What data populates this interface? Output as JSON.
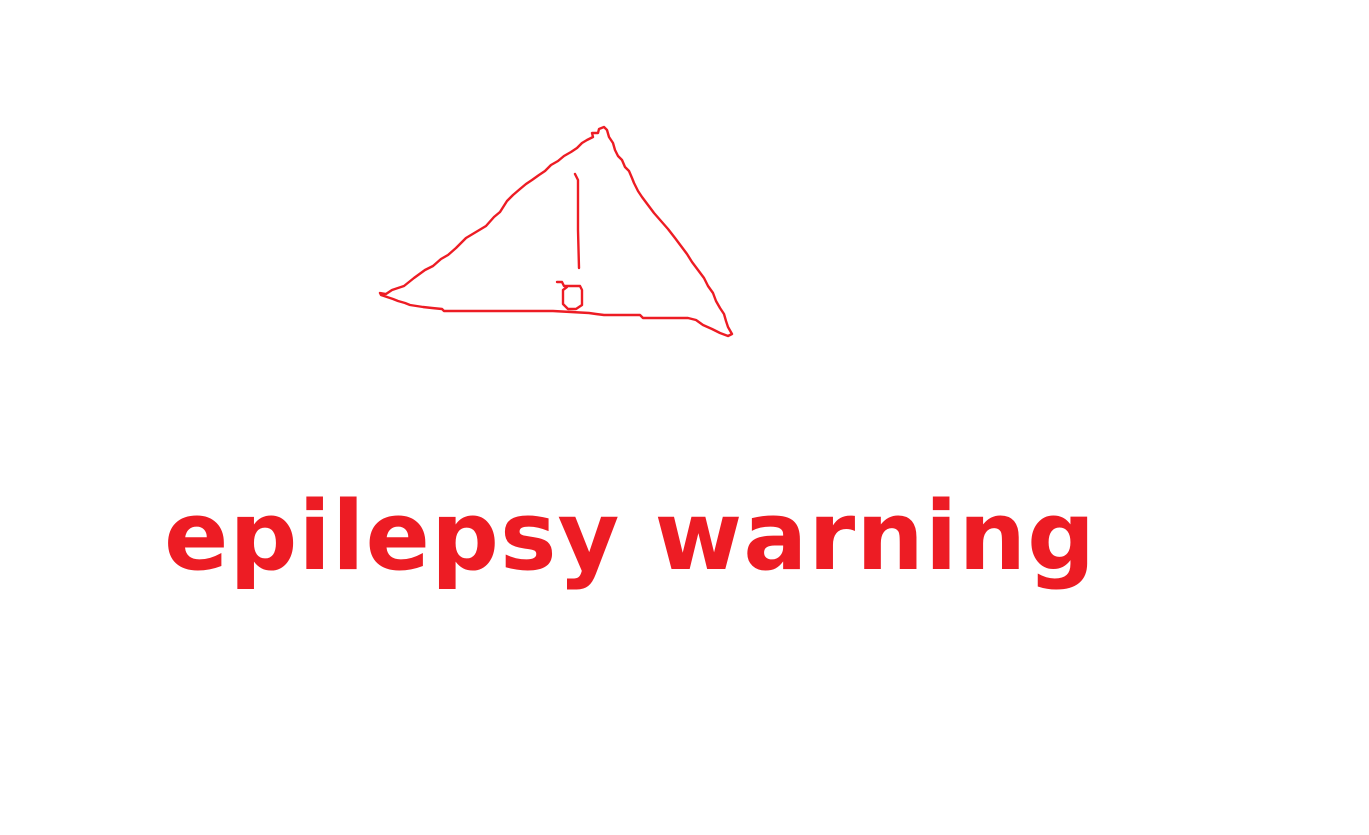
{
  "warning": {
    "text": "epilepsy warning",
    "icon": "hand-drawn-warning-triangle-icon",
    "color": "#ed1c24"
  },
  "background_color": "#ffffff"
}
